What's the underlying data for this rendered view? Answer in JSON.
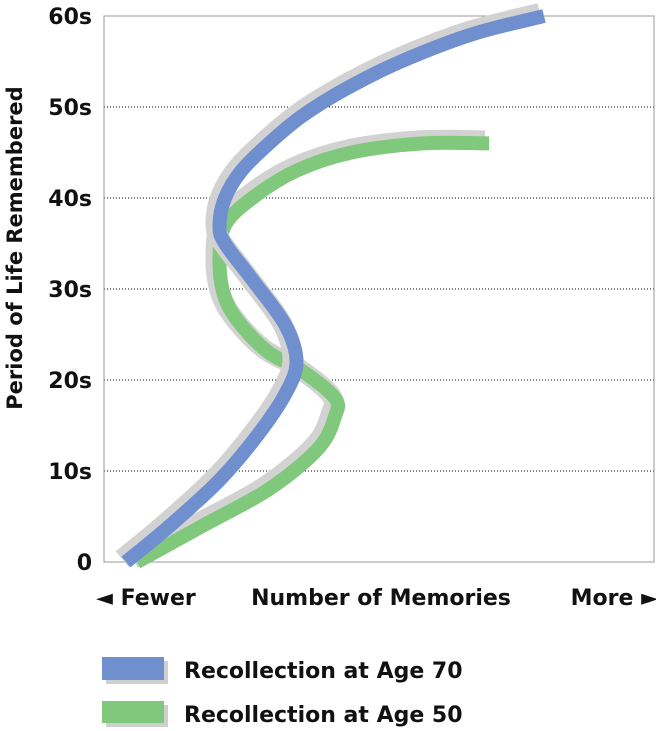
{
  "chart_data": {
    "type": "line",
    "ylabel": "Period of Life Remembered",
    "xlabel": "Number of Memories",
    "x_axis_left_label": "◄ Fewer",
    "x_axis_right_label": "More ►",
    "y_ticks": [
      "0",
      "10s",
      "20s",
      "30s",
      "40s",
      "50s",
      "60s"
    ],
    "y_tick_values": [
      0,
      10,
      20,
      30,
      40,
      50,
      60
    ],
    "ylim": [
      0,
      60
    ],
    "xlim": [
      0,
      100
    ],
    "grid": true,
    "legend_position": "bottom",
    "series": [
      {
        "name": "Recollection at Age 70",
        "color": "#6f8fcf",
        "points": [
          [
            4,
            0
          ],
          [
            12,
            4
          ],
          [
            21,
            9
          ],
          [
            28,
            14
          ],
          [
            33,
            18.5
          ],
          [
            35,
            22
          ],
          [
            33,
            26
          ],
          [
            27,
            31
          ],
          [
            22,
            35
          ],
          [
            21,
            37
          ],
          [
            22,
            40
          ],
          [
            25,
            43
          ],
          [
            30,
            46
          ],
          [
            36,
            49
          ],
          [
            44,
            52
          ],
          [
            54,
            55
          ],
          [
            67,
            58
          ],
          [
            80,
            60
          ]
        ]
      },
      {
        "name": "Recollection at Age 50",
        "color": "#80c87c",
        "points": [
          [
            6,
            0
          ],
          [
            18,
            4
          ],
          [
            30,
            8
          ],
          [
            39,
            12.5
          ],
          [
            42,
            16
          ],
          [
            42,
            18
          ],
          [
            36,
            21
          ],
          [
            30,
            23
          ],
          [
            25,
            26
          ],
          [
            22,
            29
          ],
          [
            21,
            33
          ],
          [
            22,
            37
          ],
          [
            27,
            40
          ],
          [
            35,
            43
          ],
          [
            45,
            45
          ],
          [
            58,
            46
          ],
          [
            70,
            46
          ]
        ]
      }
    ]
  }
}
